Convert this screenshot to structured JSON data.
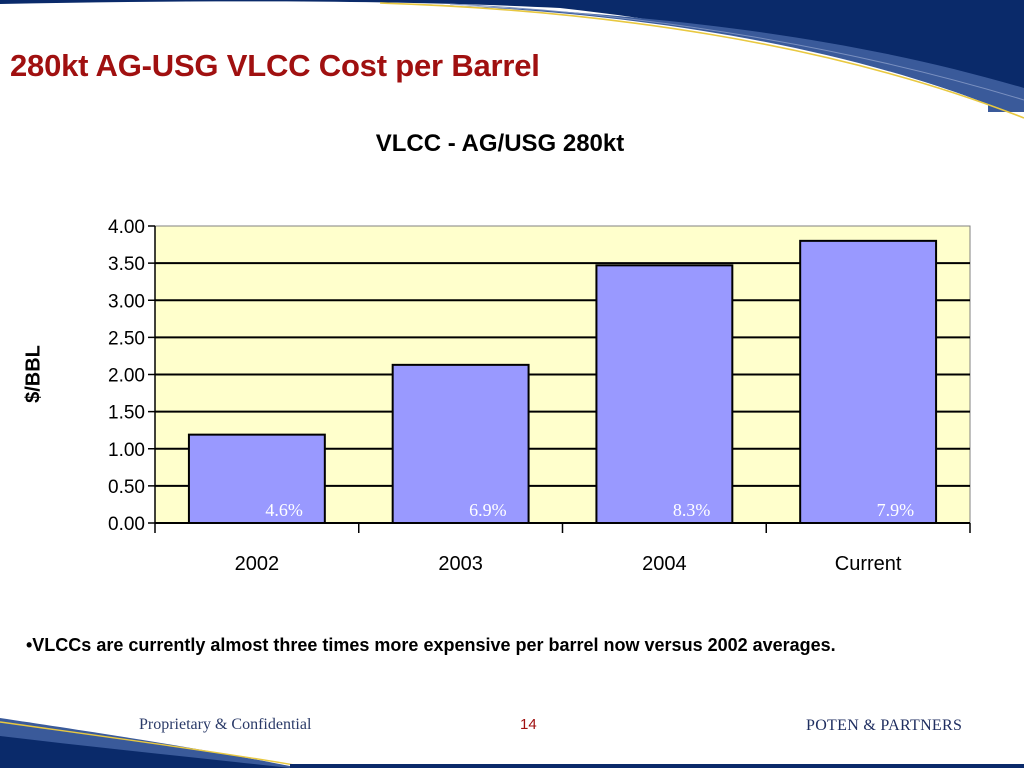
{
  "slide": {
    "title": "280kt AG-USG VLCC Cost per Barrel",
    "bullet": "•VLCCs are currently almost three times more expensive per barrel now versus 2002 averages.",
    "footer_left": "Proprietary & Confidential",
    "page_number": "14",
    "footer_right": "POTEN & PARTNERS"
  },
  "colors": {
    "title": "#a01010",
    "plot_background": "#ffffcc",
    "bar_fill": "#9999ff",
    "bar_label": "#ffffff",
    "brand_navy": "#0a2a6a",
    "brand_gold": "#e8c840"
  },
  "chart_data": {
    "type": "bar",
    "title": "VLCC - AG/USG 280kt",
    "xlabel": "",
    "ylabel": "$/BBL",
    "categories": [
      "2002",
      "2003",
      "2004",
      "Current"
    ],
    "values": [
      1.19,
      2.13,
      3.47,
      3.8
    ],
    "bar_labels": [
      "4.6%",
      "6.9%",
      "8.3%",
      "7.9%"
    ],
    "ylim": [
      0,
      4
    ],
    "yticks": [
      "0.00",
      "0.50",
      "1.00",
      "1.50",
      "2.00",
      "2.50",
      "3.00",
      "3.50",
      "4.00"
    ],
    "grid": true,
    "legend": "none"
  }
}
